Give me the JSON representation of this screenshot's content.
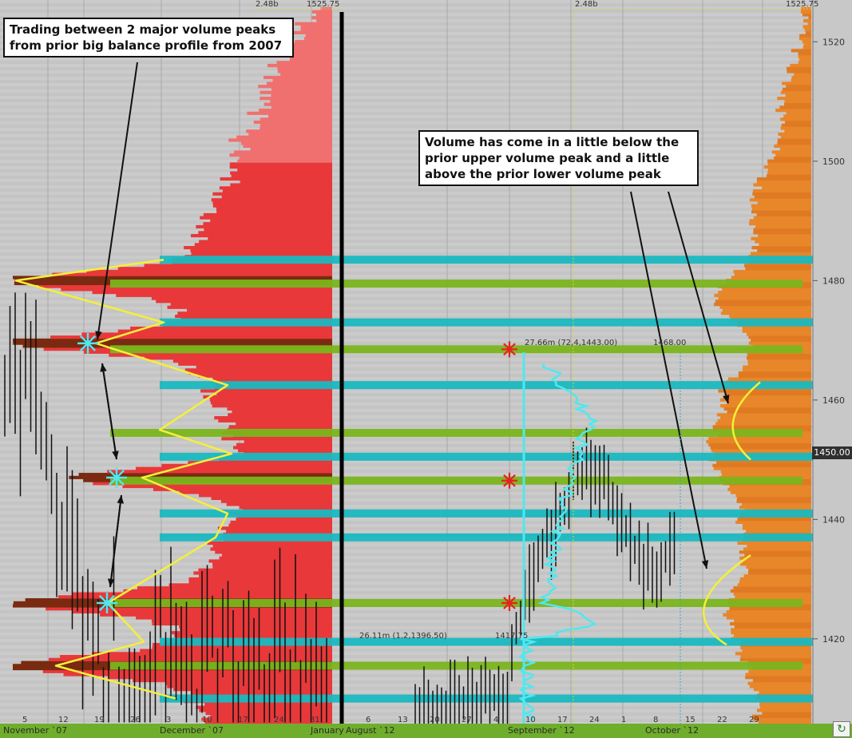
{
  "annotations": {
    "left_callout": "Trading between 2 major volume peaks from prior big balance profile from 2007",
    "right_callout": "Volume has come in a little below the prior upper volume peak and a little above the prior lower volume peak"
  },
  "chart_labels": {
    "top_left_volume": "2.48b",
    "top_left_price": "1525.75",
    "top_right_volume": "2.48b",
    "top_right_price": "1525.75",
    "session_high_info": "27.66m (72,4,1443.00)",
    "session_high_price": "1468.00",
    "session_low_info": "26.11m (1.2,1396.50)",
    "session_low_price": "1417.75",
    "current_price": "1450.00"
  },
  "refresh_icon": "refresh-icon",
  "colors": {
    "background": "#c8c8c8",
    "profile_red": "#e8383a",
    "profile_orange": "#e8862a",
    "hvn_teal": "#1ab8c0",
    "hvn_green": "#7ab51c",
    "annotation_yellow": "#f4f03a",
    "vwap_cyan": "#4fe8f0",
    "star_red": "#e82020",
    "bottom_bar": "#6fae2c"
  },
  "chart_data": {
    "type": "bar",
    "y_axis": {
      "ticks": [
        1520,
        1500,
        1480,
        1460,
        1450,
        1440,
        1420
      ],
      "tick_labels": [
        "1520",
        "1500",
        "1480",
        "1460",
        "1450",
        "1440",
        "1420"
      ],
      "range": [
        1405.8,
        1527
      ]
    },
    "x_axis": {
      "month_labels": [
        "November `07",
        "December `07",
        "January",
        "August `12",
        "September `12",
        "October `12"
      ],
      "day_labels_2007": [
        "5",
        "12",
        "19",
        "26",
        "3",
        "10",
        "17",
        "24",
        "31"
      ],
      "day_labels_2012": [
        "6",
        "13",
        "20",
        "27",
        "4",
        "10",
        "17",
        "24",
        "1",
        "8",
        "15",
        "22",
        "29"
      ]
    },
    "volume_peak_levels": [
      {
        "price": 1483.5,
        "kind": "teal"
      },
      {
        "price": 1479.5,
        "kind": "green"
      },
      {
        "price": 1473,
        "kind": "teal"
      },
      {
        "price": 1468.5,
        "kind": "green"
      },
      {
        "price": 1462.5,
        "kind": "teal"
      },
      {
        "price": 1454.5,
        "kind": "green"
      },
      {
        "price": 1450.5,
        "kind": "teal"
      },
      {
        "price": 1446.5,
        "kind": "green"
      },
      {
        "price": 1441,
        "kind": "teal"
      },
      {
        "price": 1437,
        "kind": "teal"
      },
      {
        "price": 1426,
        "kind": "green"
      },
      {
        "price": 1419.5,
        "kind": "teal"
      },
      {
        "price": 1415.5,
        "kind": "green"
      },
      {
        "price": 1410,
        "kind": "teal"
      }
    ],
    "profile_2007": {
      "peaks": [
        1480,
        1469.5,
        1415.5,
        1426,
        1447
      ],
      "peak_marks": [
        1469.5,
        1447,
        1426
      ]
    },
    "markers_2012": [
      1468.5,
      1446.5,
      1426
    ],
    "session_high": 1468.0,
    "session_low": 1417.75,
    "current_price": 1450.0
  }
}
